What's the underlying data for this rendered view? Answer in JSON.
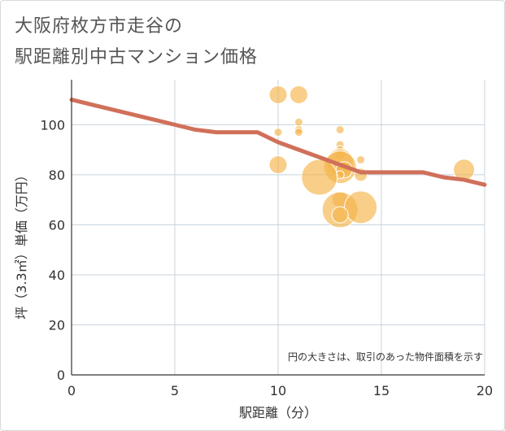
{
  "chart_data": {
    "type": "scatter",
    "title_lines": [
      "大阪府枚方市走谷の",
      "駅距離別中古マンション価格"
    ],
    "xlabel": "駅距離（分）",
    "ylabel": "坪（3.3㎡）単価（万円）",
    "xlim": [
      0,
      20
    ],
    "ylim": [
      0,
      118
    ],
    "x_ticks": [
      0,
      5,
      10,
      15,
      20
    ],
    "y_ticks": [
      0,
      20,
      40,
      60,
      80,
      100
    ],
    "grid": true,
    "annotation": "円の大きさは、取引のあった物件面積を示す",
    "bubbles": [
      {
        "x": 10,
        "y": 112,
        "size": 2.2
      },
      {
        "x": 11,
        "y": 112,
        "size": 2.2
      },
      {
        "x": 10,
        "y": 97,
        "size": 1
      },
      {
        "x": 11,
        "y": 101,
        "size": 1
      },
      {
        "x": 11,
        "y": 98,
        "size": 1
      },
      {
        "x": 11,
        "y": 97,
        "size": 1
      },
      {
        "x": 13,
        "y": 98,
        "size": 1
      },
      {
        "x": 13,
        "y": 92,
        "size": 1
      },
      {
        "x": 13,
        "y": 90,
        "size": 1
      },
      {
        "x": 13,
        "y": 88,
        "size": 1.3
      },
      {
        "x": 10,
        "y": 84,
        "size": 2.2
      },
      {
        "x": 14,
        "y": 86,
        "size": 1
      },
      {
        "x": 13,
        "y": 85,
        "size": 3.3
      },
      {
        "x": 13,
        "y": 83,
        "size": 4
      },
      {
        "x": 13.2,
        "y": 82,
        "size": 2
      },
      {
        "x": 13,
        "y": 80,
        "size": 1
      },
      {
        "x": 14,
        "y": 80,
        "size": 1.6
      },
      {
        "x": 12,
        "y": 79,
        "size": 4.4
      },
      {
        "x": 19,
        "y": 82,
        "size": 2.6
      },
      {
        "x": 13,
        "y": 70,
        "size": 2
      },
      {
        "x": 13,
        "y": 66,
        "size": 4.4
      },
      {
        "x": 14,
        "y": 67,
        "size": 4
      },
      {
        "x": 13,
        "y": 64,
        "size": 2
      }
    ],
    "series": [
      {
        "name": "trend",
        "x": [
          0,
          1,
          2,
          3,
          4,
          5,
          6,
          7,
          8,
          9,
          10,
          11,
          12,
          13,
          14,
          15,
          16,
          17,
          18,
          19,
          20
        ],
        "y": [
          110,
          108,
          106,
          104,
          102,
          100,
          98,
          97,
          97,
          97,
          93,
          90,
          87,
          84,
          81,
          81,
          81,
          81,
          79,
          78,
          76
        ]
      }
    ],
    "colors": {
      "bubble": "#f5b34a",
      "line": "#d1705a",
      "grid": "#c8d3dc",
      "axis": "#333333"
    }
  }
}
